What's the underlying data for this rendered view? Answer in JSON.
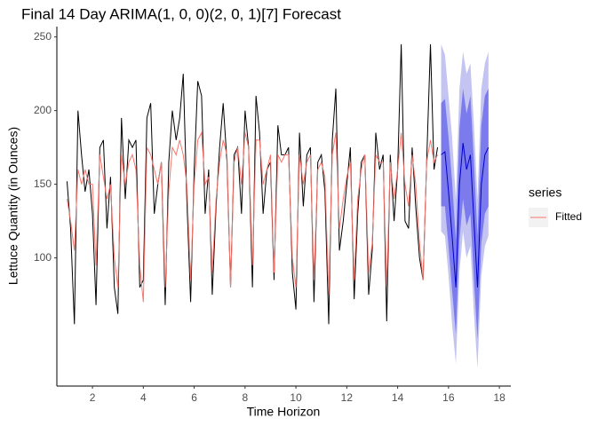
{
  "chart_data": {
    "type": "forecast",
    "title": "Final 14 Day ARIMA(1, 0, 0)(2, 0, 1)[7] Forecast",
    "x_label": "Time Horizon",
    "y_label": "Lettuce Quantity (in Ounces)",
    "legend_title": "series",
    "xlim": [
      0.6,
      18.45
    ],
    "xticks": [
      2,
      4,
      6,
      8,
      10,
      12,
      14,
      16,
      18
    ],
    "ylim": [
      13,
      257
    ],
    "yticks": [
      100,
      150,
      200,
      250
    ],
    "series": [
      {
        "color": "#000000",
        "x": [
          1,
          1.14,
          1.29,
          1.43,
          1.57,
          1.71,
          1.86,
          2,
          2.14,
          2.29,
          2.43,
          2.57,
          2.71,
          2.86,
          3,
          3.14,
          3.29,
          3.43,
          3.57,
          3.71,
          3.86,
          4,
          4.14,
          4.29,
          4.43,
          4.57,
          4.71,
          4.86,
          5,
          5.14,
          5.29,
          5.43,
          5.57,
          5.71,
          5.86,
          6,
          6.14,
          6.29,
          6.43,
          6.57,
          6.71,
          6.86,
          7,
          7.14,
          7.29,
          7.43,
          7.57,
          7.71,
          7.86,
          8,
          8.14,
          8.29,
          8.43,
          8.57,
          8.71,
          8.86,
          9,
          9.14,
          9.29,
          9.43,
          9.57,
          9.71,
          9.86,
          10,
          10.14,
          10.29,
          10.43,
          10.57,
          10.71,
          10.86,
          11,
          11.14,
          11.29,
          11.43,
          11.57,
          11.71,
          11.86,
          12,
          12.14,
          12.29,
          12.43,
          12.57,
          12.71,
          12.86,
          13,
          13.14,
          13.29,
          13.43,
          13.57,
          13.71,
          13.86,
          14,
          14.14,
          14.29,
          14.43,
          14.57,
          14.71,
          14.86,
          15,
          15.14,
          15.29,
          15.43,
          15.57
        ],
        "values": [
          152,
          120,
          55,
          200,
          170,
          145,
          160,
          130,
          68,
          175,
          180,
          120,
          155,
          80,
          62,
          195,
          140,
          180,
          175,
          180,
          80,
          85,
          195,
          205,
          130,
          150,
          165,
          68,
          165,
          200,
          180,
          195,
          225,
          140,
          70,
          160,
          220,
          210,
          130,
          160,
          75,
          135,
          175,
          205,
          165,
          80,
          170,
          175,
          130,
          200,
          175,
          80,
          210,
          185,
          130,
          160,
          165,
          85,
          190,
          170,
          170,
          175,
          90,
          65,
          185,
          135,
          170,
          175,
          70,
          165,
          170,
          145,
          55,
          180,
          215,
          105,
          125,
          150,
          175,
          72,
          130,
          165,
          170,
          75,
          105,
          185,
          160,
          170,
          57,
          170,
          125,
          160,
          245,
          125,
          120,
          175,
          135,
          100,
          85,
          165,
          245,
          160,
          175
        ]
      },
      {
        "name": "Fitted",
        "color": "#f8766d",
        "x": [
          1,
          1.14,
          1.29,
          1.43,
          1.57,
          1.71,
          1.86,
          2,
          2.14,
          2.29,
          2.43,
          2.57,
          2.71,
          2.86,
          3,
          3.14,
          3.29,
          3.43,
          3.57,
          3.71,
          3.86,
          4,
          4.14,
          4.29,
          4.43,
          4.57,
          4.71,
          4.86,
          5,
          5.14,
          5.29,
          5.43,
          5.57,
          5.71,
          5.86,
          6,
          6.14,
          6.29,
          6.43,
          6.57,
          6.71,
          6.86,
          7,
          7.14,
          7.29,
          7.43,
          7.57,
          7.71,
          7.86,
          8,
          8.14,
          8.29,
          8.43,
          8.57,
          8.71,
          8.86,
          9,
          9.14,
          9.29,
          9.43,
          9.57,
          9.71,
          9.86,
          10,
          10.14,
          10.29,
          10.43,
          10.57,
          10.71,
          10.86,
          11,
          11.14,
          11.29,
          11.43,
          11.57,
          11.71,
          11.86,
          12,
          12.14,
          12.29,
          12.43,
          12.57,
          12.71,
          12.86,
          13,
          13.14,
          13.29,
          13.43,
          13.57,
          13.71,
          13.86,
          14,
          14.14,
          14.29,
          14.43,
          14.57,
          14.71,
          14.86,
          15,
          15.14,
          15.29,
          15.43,
          15.57
        ],
        "values": [
          140,
          125,
          105,
          160,
          150,
          160,
          150,
          150,
          95,
          170,
          155,
          140,
          150,
          100,
          80,
          170,
          150,
          165,
          170,
          160,
          95,
          70,
          175,
          170,
          160,
          150,
          165,
          80,
          145,
          175,
          170,
          180,
          170,
          150,
          85,
          150,
          180,
          185,
          150,
          155,
          90,
          140,
          165,
          180,
          170,
          80,
          165,
          175,
          150,
          185,
          175,
          95,
          180,
          180,
          150,
          160,
          170,
          90,
          170,
          165,
          170,
          170,
          100,
          80,
          170,
          150,
          165,
          170,
          85,
          160,
          165,
          155,
          75,
          170,
          185,
          120,
          140,
          155,
          165,
          85,
          140,
          160,
          170,
          90,
          110,
          170,
          165,
          165,
          80,
          165,
          140,
          160,
          185,
          150,
          135,
          170,
          150,
          110,
          85,
          165,
          180,
          165,
          170
        ]
      },
      {
        "color": "#0000cc",
        "x": [
          15.71,
          15.86,
          16,
          16.14,
          16.29,
          16.43,
          16.57,
          16.71,
          16.86,
          17,
          17.14,
          17.29,
          17.43,
          17.57
        ],
        "values": [
          170,
          172,
          145,
          115,
          80,
          150,
          178,
          160,
          170,
          125,
          80,
          150,
          170,
          175
        ]
      }
    ],
    "bands": [
      {
        "color": "#c4c4f2",
        "x": [
          15.71,
          15.86,
          16,
          16.14,
          16.29,
          16.43,
          16.57,
          16.71,
          16.86,
          17,
          17.14,
          17.29,
          17.43,
          17.57
        ],
        "lower": [
          118,
          115,
          88,
          55,
          28,
          90,
          118,
          100,
          108,
          62,
          25,
          88,
          108,
          115
        ],
        "upper": [
          245,
          238,
          210,
          182,
          140,
          215,
          240,
          225,
          232,
          190,
          140,
          215,
          232,
          240
        ]
      },
      {
        "color": "#7b7bee",
        "x": [
          15.71,
          15.86,
          16,
          16.14,
          16.29,
          16.43,
          16.57,
          16.71,
          16.86,
          17,
          17.14,
          17.29,
          17.43,
          17.57
        ],
        "lower": [
          135,
          135,
          108,
          78,
          48,
          112,
          140,
          122,
          130,
          85,
          45,
          110,
          130,
          135
        ],
        "upper": [
          205,
          208,
          182,
          152,
          112,
          188,
          215,
          198,
          210,
          165,
          115,
          190,
          210,
          215
        ]
      }
    ]
  }
}
